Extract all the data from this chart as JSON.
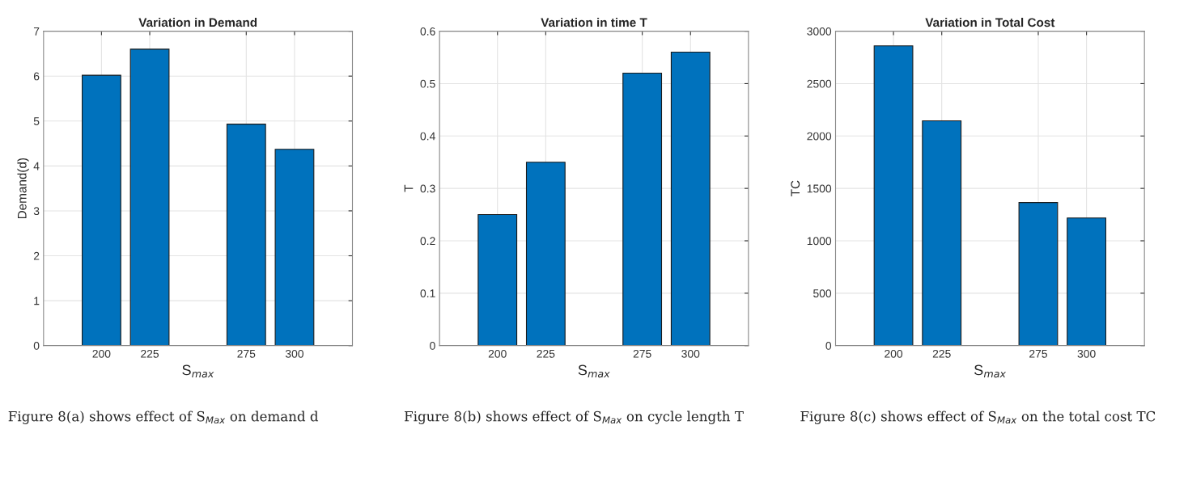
{
  "chart_data": [
    {
      "type": "bar",
      "title": "Variation in Demand",
      "xlabel": "S$_{max}$",
      "ylabel": "Demand(d)",
      "x": [
        200,
        225,
        275,
        300
      ],
      "values": [
        6.02,
        6.6,
        4.93,
        4.37
      ],
      "color": "#0072bd",
      "xlim": [
        170,
        330
      ],
      "xticks": [
        200,
        225,
        275,
        300
      ],
      "ylim": [
        0,
        7
      ],
      "yticks": [
        0,
        1,
        2,
        3,
        4,
        5,
        6,
        7
      ],
      "grid": true,
      "annotations": [
        "Figure 8(a) shows effect of S$_{Max}$ on demand d"
      ]
    },
    {
      "type": "bar",
      "title": "Variation in time T",
      "xlabel": "S$_{max}$",
      "ylabel": "T",
      "x": [
        200,
        225,
        275,
        300
      ],
      "values": [
        0.25,
        0.35,
        0.52,
        0.56
      ],
      "color": "#0072bd",
      "xlim": [
        170,
        330
      ],
      "xticks": [
        200,
        225,
        275,
        300
      ],
      "ylim": [
        0,
        0.6
      ],
      "yticks": [
        0,
        0.1,
        0.2,
        0.3,
        0.4,
        0.5,
        0.6
      ],
      "grid": true,
      "annotations": [
        "Figure 8(b) shows effect of S$_{Max}$ on cycle length T"
      ]
    },
    {
      "type": "bar",
      "title": "Variation in Total Cost",
      "xlabel": "S$_{max}$",
      "ylabel": "TC",
      "x": [
        200,
        225,
        275,
        300
      ],
      "values": [
        2860,
        2145,
        1365,
        1218
      ],
      "color": "#0072bd",
      "xlim": [
        170,
        330
      ],
      "xticks": [
        200,
        225,
        275,
        300
      ],
      "ylim": [
        0,
        3000
      ],
      "yticks": [
        0,
        500,
        1000,
        1500,
        2000,
        2500,
        3000
      ],
      "grid": true,
      "annotations": [
        "Figure 8(c) shows effect of S$_{Max}$ on the total cost TC"
      ]
    }
  ]
}
